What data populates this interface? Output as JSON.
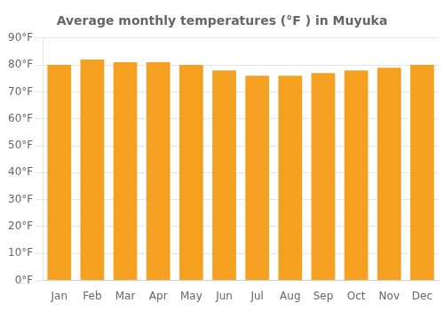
{
  "chart_data": {
    "type": "bar",
    "title": "Average monthly temperatures (°F ) in Muyuka",
    "categories": [
      "Jan",
      "Feb",
      "Mar",
      "Apr",
      "May",
      "Jun",
      "Jul",
      "Aug",
      "Sep",
      "Oct",
      "Nov",
      "Dec"
    ],
    "values": [
      80,
      82,
      81,
      81,
      80,
      78,
      76,
      76,
      77,
      78,
      79,
      80
    ],
    "color": "#F5A020",
    "ylim": [
      0,
      90
    ],
    "yticks": [
      {
        "value": 0,
        "label": "0°F"
      },
      {
        "value": 10,
        "label": "10°F"
      },
      {
        "value": 20,
        "label": "20°F"
      },
      {
        "value": 30,
        "label": "30°F"
      },
      {
        "value": 40,
        "label": "40°F"
      },
      {
        "value": 50,
        "label": "50°F"
      },
      {
        "value": 60,
        "label": "60°F"
      },
      {
        "value": 70,
        "label": "70°F"
      },
      {
        "value": 80,
        "label": "80°F"
      },
      {
        "value": 90,
        "label": "90°F"
      }
    ],
    "grid": true
  }
}
